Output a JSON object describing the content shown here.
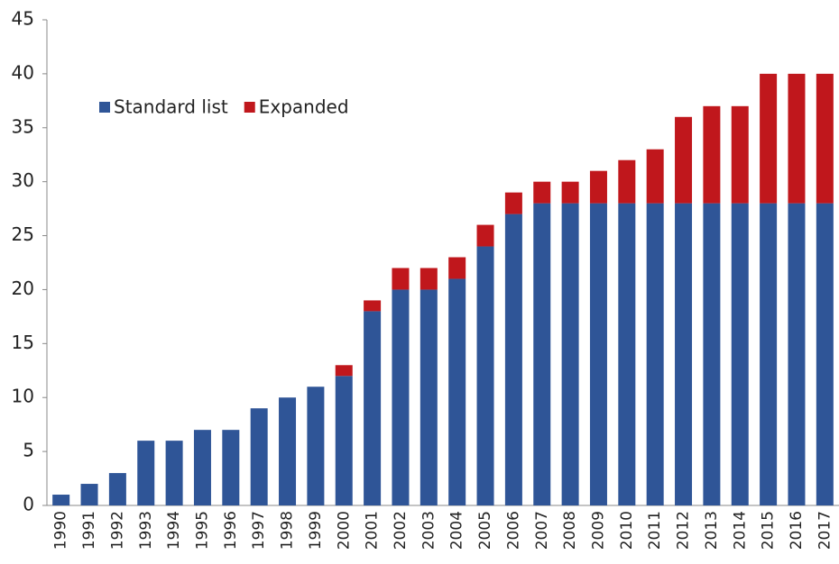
{
  "chart_data": {
    "type": "stacked-bar",
    "categories": [
      "1990",
      "1991",
      "1992",
      "1993",
      "1994",
      "1995",
      "1996",
      "1997",
      "1998",
      "1999",
      "2000",
      "2001",
      "2002",
      "2003",
      "2004",
      "2005",
      "2006",
      "2007",
      "2008",
      "2009",
      "2010",
      "2011",
      "2012",
      "2013",
      "2014",
      "2015",
      "2016",
      "2017"
    ],
    "series": [
      {
        "name": "Standard list",
        "color": "#2f5597",
        "values": [
          1,
          2,
          3,
          6,
          6,
          7,
          7,
          9,
          10,
          11,
          12,
          18,
          20,
          20,
          21,
          24,
          27,
          28,
          28,
          28,
          28,
          28,
          28,
          28,
          28,
          28,
          28,
          28
        ]
      },
      {
        "name": "Expanded",
        "color": "#c0171c",
        "values": [
          0,
          0,
          0,
          0,
          0,
          0,
          0,
          0,
          0,
          0,
          1,
          1,
          2,
          2,
          2,
          2,
          2,
          2,
          2,
          3,
          4,
          5,
          8,
          9,
          9,
          12,
          12,
          12
        ]
      }
    ],
    "ylim": [
      0,
      45
    ],
    "yticks": [
      0,
      5,
      10,
      15,
      20,
      25,
      30,
      35,
      40,
      45
    ],
    "grid": false,
    "legend": "upper left"
  }
}
